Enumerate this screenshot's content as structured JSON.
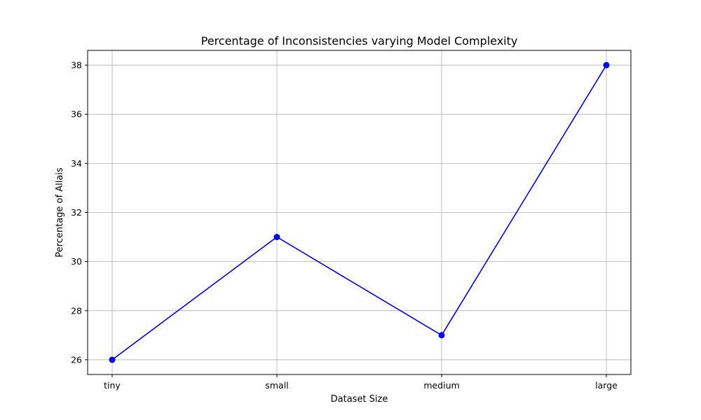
{
  "chart_data": {
    "type": "line",
    "title": "Percentage of Inconsistencies varying Model Complexity",
    "xlabel": "Dataset Size",
    "ylabel": "Percentage of Allais",
    "categories": [
      "tiny",
      "small",
      "medium",
      "large"
    ],
    "series": [
      {
        "values": [
          26,
          31,
          27,
          38
        ],
        "color": "#0000ff",
        "marker": "circle"
      }
    ],
    "ylim": [
      25.4,
      38.6
    ],
    "yticks": [
      26,
      28,
      30,
      32,
      34,
      36,
      38
    ],
    "grid": true,
    "colors": {
      "line": "#0000ff",
      "grid": "#b0b0b0",
      "axes": "#000000"
    }
  }
}
